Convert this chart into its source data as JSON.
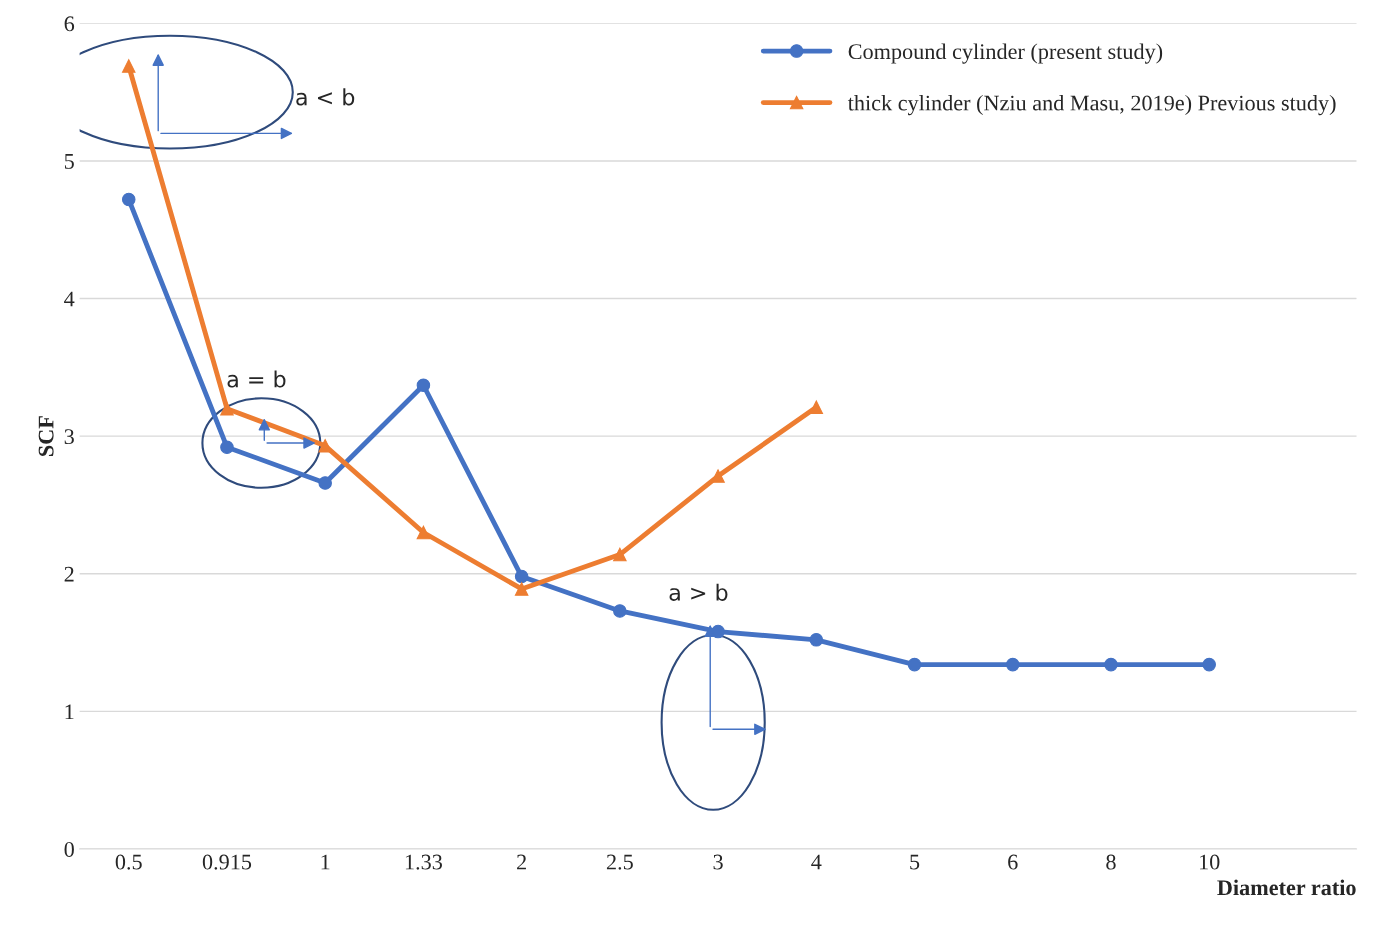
{
  "chart_data": {
    "type": "line",
    "xlabel": "Diameter ratio",
    "ylabel": "SCF",
    "categories": [
      "0.5",
      "0.915",
      "1",
      "1.33",
      "2",
      "2.5",
      "3",
      "4",
      "5",
      "6",
      "8",
      "10",
      null
    ],
    "series": [
      {
        "name": "Compound cylinder (present study)",
        "color": "#4472c4",
        "marker": "circle",
        "values": [
          4.72,
          2.92,
          2.66,
          3.37,
          1.98,
          1.73,
          1.58,
          1.52,
          1.34,
          1.34,
          1.34,
          1.34,
          null
        ]
      },
      {
        "name": "thick cylinder (Nziu and Masu, 2019e) Previous study)",
        "color": "#ed7d31",
        "marker": "triangle",
        "values": [
          5.69,
          3.2,
          2.93,
          2.3,
          1.89,
          2.14,
          2.71,
          3.21,
          null,
          null,
          null,
          null,
          null
        ]
      }
    ],
    "ylim": [
      0,
      6
    ],
    "yticks": [
      0,
      1,
      2,
      3,
      4,
      5,
      6
    ],
    "grid": "y",
    "legend": "top right",
    "line_style": "solid",
    "annotations": [
      "a < b",
      "a = b",
      "a > b"
    ]
  }
}
